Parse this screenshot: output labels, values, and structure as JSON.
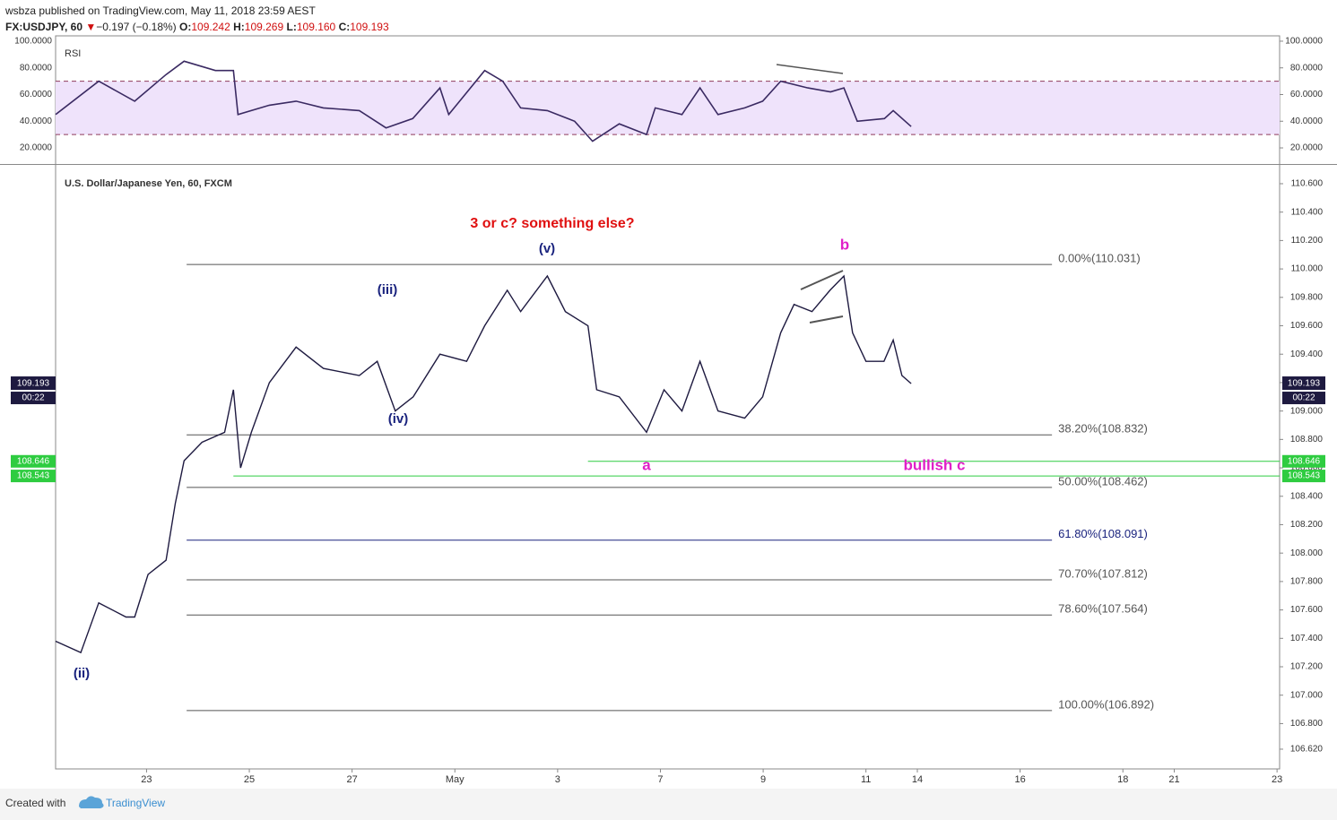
{
  "header": {
    "publisher": "wsbza published on TradingView.com, May 11, 2018 23:59 AEST",
    "symbol": "FX:USDJPY, 60",
    "arrow": "▼",
    "change": "−0.197 (−0.18%)",
    "ohlc": [
      {
        "key": "O:",
        "value": "109.242"
      },
      {
        "key": "H:",
        "value": "109.269"
      },
      {
        "key": "L:",
        "value": "109.160"
      },
      {
        "key": "C:",
        "value": "109.193"
      }
    ]
  },
  "chart_data": [
    {
      "type": "line",
      "title": "RSI",
      "xlim": [
        -1.77,
        22.05
      ],
      "ylim": [
        8.6,
        104
      ],
      "yticks": [
        {
          "value": 20,
          "label": "20.0000"
        },
        {
          "value": 40,
          "label": "40.0000"
        },
        {
          "value": 60,
          "label": "60.0000"
        },
        {
          "value": 80,
          "label": "80.0000"
        },
        {
          "value": 100,
          "label": "100.0000"
        }
      ],
      "band": [
        30,
        70
      ],
      "band_color": "#efe3fb",
      "band_line_color": "#8e3a5c",
      "x": [
        -1.77,
        -0.93,
        -0.23,
        0.38,
        0.73,
        1.34,
        1.69,
        1.78,
        2.39,
        2.91,
        3.44,
        4.14,
        4.66,
        5.18,
        5.71,
        5.88,
        6.58,
        6.93,
        7.28,
        7.8,
        8.33,
        8.68,
        9.2,
        9.73,
        9.9,
        10.42,
        10.77,
        11.12,
        11.64,
        11.99,
        12.34,
        12.87,
        13.31,
        13.57,
        13.83,
        14.36,
        14.53,
        14.88
      ],
      "series": [
        {
          "name": "RSI",
          "color": "#3a2a62",
          "values": [
            45,
            70,
            55,
            75,
            85,
            78,
            78,
            45,
            52,
            55,
            50,
            48,
            35,
            42,
            65,
            45,
            78,
            70,
            50,
            48,
            40,
            25,
            38,
            30,
            50,
            45,
            65,
            45,
            50,
            55,
            70,
            65,
            62,
            65,
            40,
            42,
            48,
            36
          ]
        }
      ]
    },
    {
      "type": "line",
      "title": "U.S. Dollar/Japanese Yen, 60, FXCM",
      "xlim": [
        -1.77,
        22.05
      ],
      "ylim": [
        106.481,
        110.726
      ],
      "yticks": [
        {
          "value": 106.62,
          "label": "106.620"
        },
        {
          "value": 106.8,
          "label": "106.800"
        },
        {
          "value": 107.0,
          "label": "107.000"
        },
        {
          "value": 107.2,
          "label": "107.200"
        },
        {
          "value": 107.4,
          "label": "107.400"
        },
        {
          "value": 107.6,
          "label": "107.600"
        },
        {
          "value": 107.8,
          "label": "107.800"
        },
        {
          "value": 108.0,
          "label": "108.000"
        },
        {
          "value": 108.2,
          "label": "108.200"
        },
        {
          "value": 108.4,
          "label": "108.400"
        },
        {
          "value": 108.6,
          "label": "108.600"
        },
        {
          "value": 108.8,
          "label": "108.800"
        },
        {
          "value": 109.0,
          "label": "109.000"
        },
        {
          "value": 109.2,
          "label": "109.200"
        },
        {
          "value": 109.4,
          "label": "109.400"
        },
        {
          "value": 109.6,
          "label": "109.600"
        },
        {
          "value": 109.8,
          "label": "109.800"
        },
        {
          "value": 110.0,
          "label": "110.000"
        },
        {
          "value": 110.2,
          "label": "110.200"
        },
        {
          "value": 110.4,
          "label": "110.400"
        },
        {
          "value": 110.6,
          "label": "110.600"
        }
      ],
      "xticks": [
        {
          "value": 0,
          "label": "23"
        },
        {
          "value": 2,
          "label": "25"
        },
        {
          "value": 4,
          "label": "27"
        },
        {
          "value": 6,
          "label": "May"
        },
        {
          "value": 8,
          "label": "3"
        },
        {
          "value": 10,
          "label": "7"
        },
        {
          "value": 12,
          "label": "9"
        },
        {
          "value": 14,
          "label": "11"
        },
        {
          "value": 15,
          "label": "14"
        },
        {
          "value": 17,
          "label": "16"
        },
        {
          "value": 19,
          "label": "18"
        },
        {
          "value": 20,
          "label": "21"
        },
        {
          "value": 22,
          "label": "23"
        }
      ],
      "x": [
        -1.77,
        -1.28,
        -0.93,
        -0.4,
        -0.23,
        0.03,
        0.38,
        0.56,
        0.73,
        1.08,
        1.52,
        1.69,
        1.83,
        2.04,
        2.39,
        2.91,
        3.44,
        4.14,
        4.49,
        4.84,
        5.19,
        5.71,
        6.23,
        6.58,
        7.02,
        7.28,
        7.8,
        8.15,
        8.59,
        8.76,
        9.2,
        9.73,
        10.07,
        10.42,
        10.77,
        11.12,
        11.64,
        11.99,
        12.34,
        12.6,
        12.95,
        13.3,
        13.57,
        13.74,
        14.0,
        14.35,
        14.53,
        14.7,
        14.88
      ],
      "series": [
        {
          "name": "USDJPY",
          "color": "#1e1a40",
          "values": [
            107.38,
            107.3,
            107.65,
            107.55,
            107.55,
            107.85,
            107.95,
            108.35,
            108.65,
            108.78,
            108.85,
            109.15,
            108.6,
            108.85,
            109.2,
            109.45,
            109.3,
            109.25,
            109.35,
            109.0,
            109.1,
            109.4,
            109.35,
            109.6,
            109.85,
            109.7,
            109.95,
            109.7,
            109.6,
            109.15,
            109.1,
            108.85,
            109.15,
            109.0,
            109.35,
            109.0,
            108.95,
            109.1,
            109.55,
            109.75,
            109.7,
            109.85,
            109.95,
            109.55,
            109.35,
            109.35,
            109.5,
            109.25,
            109.193
          ]
        }
      ],
      "fib_x": [
        0.78,
        17.62
      ],
      "fib_levels": [
        {
          "label": "0.00%(110.031)",
          "value": 110.031,
          "color": "#555555"
        },
        {
          "label": "38.20%(108.832)",
          "value": 108.832,
          "color": "#555555"
        },
        {
          "label": "50.00%(108.462)",
          "value": 108.462,
          "color": "#555555"
        },
        {
          "label": "61.80%(108.091)",
          "value": 108.091,
          "color": "#1a237e"
        },
        {
          "label": "70.70%(107.812)",
          "value": 107.812,
          "color": "#555555"
        },
        {
          "label": "78.60%(107.564)",
          "value": 107.564,
          "color": "#555555"
        },
        {
          "label": "100.00%(106.892)",
          "value": 106.892,
          "color": "#555555"
        }
      ],
      "levels": [
        {
          "value": 108.646,
          "label": "108.646",
          "start": 8.59,
          "color": "#2ecc40"
        },
        {
          "value": 108.543,
          "label": "108.543",
          "start": 1.69,
          "color": "#2ecc40"
        }
      ],
      "last_price": {
        "value": 109.193,
        "label": "109.193",
        "countdown": "00:22",
        "color": "#1e1a40"
      },
      "annotations": [
        {
          "text": "3 or c? something else?",
          "color": "#e01010"
        },
        {
          "text": "(v)",
          "color": "#1a237e"
        },
        {
          "text": "(iii)",
          "color": "#1a237e"
        },
        {
          "text": "(iv)",
          "color": "#1a237e"
        },
        {
          "text": "(ii)",
          "color": "#1a237e"
        },
        {
          "text": "a",
          "color": "#e020c8"
        },
        {
          "text": "b",
          "color": "#e020c8"
        },
        {
          "text": "bullish c",
          "color": "#e020c8"
        }
      ]
    }
  ],
  "footer": {
    "created": "Created with",
    "brand": "TradingView"
  }
}
